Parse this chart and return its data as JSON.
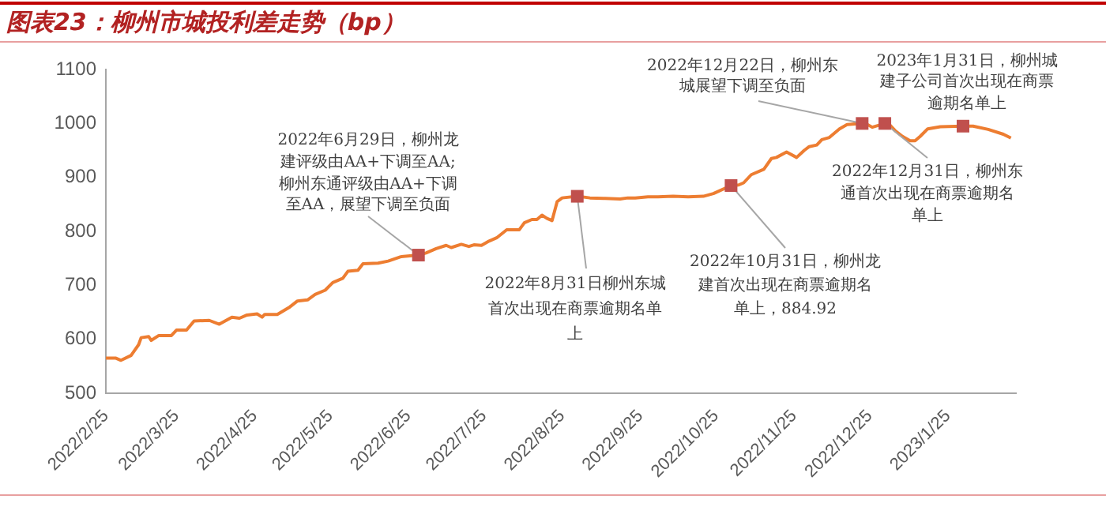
{
  "chart_data": {
    "type": "line",
    "title": "图表23：柳州市城投利差走势（bp）",
    "color": "#ed7d31",
    "x": [
      "2022-02-25",
      "2022-03-01",
      "2022-03-03",
      "2022-03-07",
      "2022-03-10",
      "2022-03-11",
      "2022-03-14",
      "2022-03-15",
      "2022-03-18",
      "2022-03-23",
      "2022-03-25",
      "2022-03-29",
      "2022-04-01",
      "2022-04-07",
      "2022-04-11",
      "2022-04-16",
      "2022-04-19",
      "2022-04-22",
      "2022-04-26",
      "2022-04-28",
      "2022-04-29",
      "2022-05-04",
      "2022-05-09",
      "2022-05-12",
      "2022-05-16",
      "2022-05-19",
      "2022-05-23",
      "2022-05-26",
      "2022-05-30",
      "2022-06-01",
      "2022-06-05",
      "2022-06-07",
      "2022-06-13",
      "2022-06-17",
      "2022-06-22",
      "2022-06-29",
      "2022-07-02",
      "2022-07-06",
      "2022-07-10",
      "2022-07-12",
      "2022-07-16",
      "2022-07-19",
      "2022-07-21",
      "2022-07-24",
      "2022-07-27",
      "2022-07-30",
      "2022-08-03",
      "2022-08-08",
      "2022-08-10",
      "2022-08-13",
      "2022-08-15",
      "2022-08-17",
      "2022-08-19",
      "2022-08-21",
      "2022-08-23",
      "2022-08-25",
      "2022-08-31",
      "2022-09-05",
      "2022-09-11",
      "2022-09-17",
      "2022-09-20",
      "2022-09-23",
      "2022-09-28",
      "2022-10-02",
      "2022-10-08",
      "2022-10-14",
      "2022-10-20",
      "2022-10-24",
      "2022-10-31",
      "2022-11-03",
      "2022-11-05",
      "2022-11-08",
      "2022-11-13",
      "2022-11-16",
      "2022-11-18",
      "2022-11-22",
      "2022-11-26",
      "2022-11-29",
      "2022-12-01",
      "2022-12-04",
      "2022-12-06",
      "2022-12-09",
      "2022-12-13",
      "2022-12-16",
      "2022-12-22",
      "2022-12-23",
      "2022-12-26",
      "2022-12-31",
      "2023-01-02",
      "2023-01-04",
      "2023-01-07",
      "2023-01-10",
      "2023-01-12",
      "2023-01-14",
      "2023-01-17",
      "2023-01-22",
      "2023-01-31",
      "2023-02-04",
      "2023-02-10",
      "2023-02-16",
      "2023-02-19"
    ],
    "values": [
      565,
      565,
      561,
      570,
      590,
      603,
      605,
      598,
      607,
      607,
      617,
      617,
      634,
      635,
      628,
      641,
      639,
      645,
      647,
      641,
      646,
      646,
      660,
      671,
      673,
      683,
      691,
      705,
      713,
      726,
      728,
      740,
      741,
      745,
      753,
      756,
      760,
      768,
      774,
      770,
      776,
      772,
      775,
      774,
      782,
      788,
      803,
      803,
      816,
      822,
      822,
      830,
      824,
      820,
      855,
      862,
      865,
      862,
      861,
      860,
      862,
      862,
      864,
      864,
      865,
      864,
      865,
      870,
      884.92,
      886,
      890,
      905,
      915,
      935,
      937,
      947,
      937,
      950,
      957,
      960,
      970,
      974,
      990,
      998,
      1000,
      1001,
      993,
      1000,
      997,
      987,
      976,
      968,
      968,
      976,
      990,
      994,
      995,
      995,
      989,
      980,
      973
    ],
    "xlim": [
      "2022-02-25",
      "2023-02-21"
    ],
    "xticks": [
      {
        "value": "2022-02-25",
        "label": "2022/2/25"
      },
      {
        "value": "2022-03-25",
        "label": "2022/3/25"
      },
      {
        "value": "2022-04-25",
        "label": "2022/4/25"
      },
      {
        "value": "2022-05-25",
        "label": "2022/5/25"
      },
      {
        "value": "2022-06-25",
        "label": "2022/6/25"
      },
      {
        "value": "2022-07-25",
        "label": "2022/7/25"
      },
      {
        "value": "2022-08-25",
        "label": "2022/8/25"
      },
      {
        "value": "2022-09-25",
        "label": "2022/9/25"
      },
      {
        "value": "2022-10-25",
        "label": "2022/10/25"
      },
      {
        "value": "2022-11-25",
        "label": "2022/11/25"
      },
      {
        "value": "2022-12-25",
        "label": "2022/12/25"
      },
      {
        "value": "2023-01-25",
        "label": "2023/1/25"
      }
    ],
    "ylim": [
      500,
      1100
    ],
    "yticks": [
      500,
      600,
      700,
      800,
      900,
      1000,
      1100
    ],
    "grid": false,
    "annotations": [
      {
        "text": "2022年6月29日，柳州龙建评级由AA+下调至AA;柳州东通评级由AA+下调至AA，展望下调至负面",
        "x": "2022-06-29",
        "y": 756
      },
      {
        "text": "2022年8月31日柳州东城首次出现在商票逾期名单上",
        "x": "2022-08-31",
        "y": 865
      },
      {
        "text": "2022年10月31日，柳州龙建首次出现在商票逾期名单上，884.92",
        "x": "2022-10-31",
        "y": 884.92
      },
      {
        "text": "2022年12月22日，柳州东城展望下调至负面",
        "x": "2022-12-22",
        "y": 1000
      },
      {
        "text": "2022年12月31日，柳州东通首次出现在商票逾期名单上",
        "x": "2022-12-31",
        "y": 1000
      },
      {
        "text": "2023年1月31日，柳州城建子公司首次出现在商票逾期名单上",
        "x": "2023-01-31",
        "y": 995
      }
    ]
  }
}
